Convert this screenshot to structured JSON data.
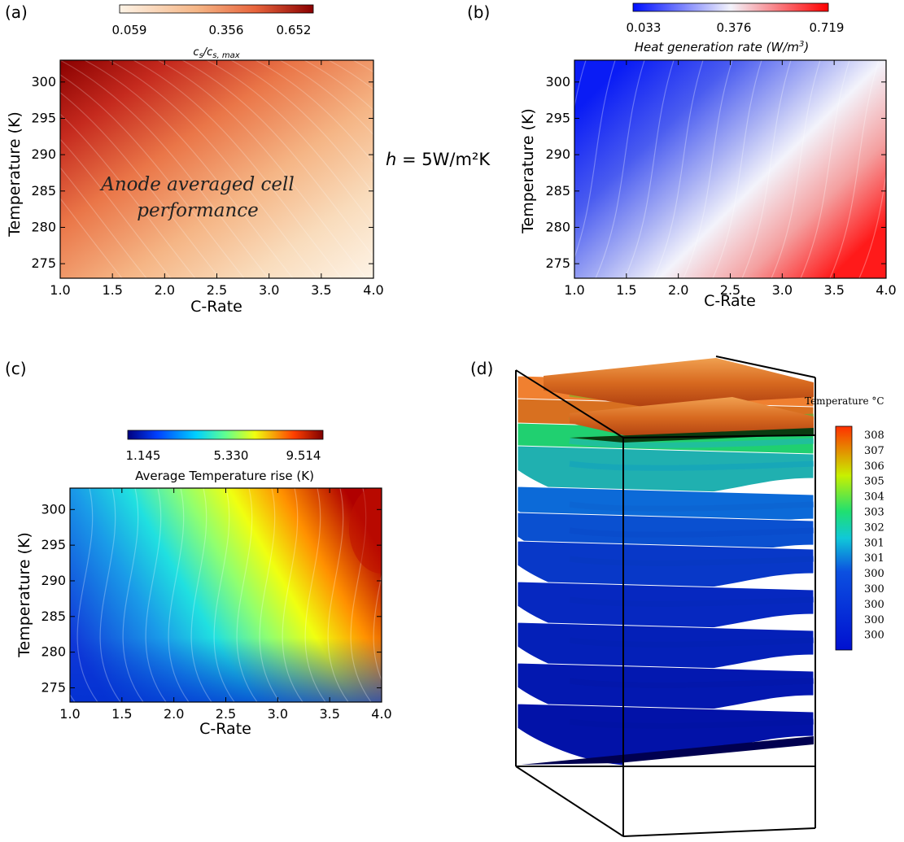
{
  "figure_note": "h = 5W/m²K",
  "colors": {
    "anode": [
      "#fdf3e6",
      "#f7c89a",
      "#ef8a56",
      "#d33f27",
      "#8a0000"
    ],
    "heat": [
      "#0010ff",
      "#6f7cf2",
      "#f3f3fb",
      "#f28b8b",
      "#ff0000"
    ],
    "temp": [
      "#00007f",
      "#0040ff",
      "#00d0ff",
      "#60ff90",
      "#f0ff10",
      "#ff9000",
      "#b00000"
    ],
    "surface": [
      "#000060",
      "#0028d8",
      "#0c6ad8",
      "#20d0d0",
      "#28e070",
      "#c8e800",
      "#ff8000",
      "#e04000"
    ]
  },
  "chart_data": [
    {
      "id": "a",
      "panel_label": "(a)",
      "type": "heatmap",
      "xlabel": "C-Rate",
      "ylabel": "Temperature (K)",
      "xlim": [
        1.0,
        4.0
      ],
      "ylim": [
        273,
        303
      ],
      "xticks": [
        "1.0",
        "1.5",
        "2.0",
        "2.5",
        "3.0",
        "3.5",
        "4.0"
      ],
      "yticks": [
        "275",
        "280",
        "285",
        "290",
        "295",
        "300"
      ],
      "colorbar": {
        "ticks": [
          "0.059",
          "0.356",
          "0.652"
        ],
        "label_main": "c",
        "label_main_sub": "s",
        "label_sep": "/c",
        "label_sub": "s, max"
      },
      "annotation": [
        "Anode averaged cell",
        "performance"
      ],
      "corner_values": {
        "low_c_high_T": 0.652,
        "high_c_low_T": 0.059
      }
    },
    {
      "id": "b",
      "panel_label": "(b)",
      "type": "heatmap",
      "xlabel": "C-Rate",
      "ylabel": "Temperature (K)",
      "xlim": [
        1.0,
        4.0
      ],
      "ylim": [
        273,
        303
      ],
      "xticks": [
        "1.0",
        "1.5",
        "2.0",
        "2.5",
        "3.0",
        "3.5",
        "4.0"
      ],
      "yticks": [
        "275",
        "280",
        "285",
        "290",
        "295",
        "300"
      ],
      "colorbar": {
        "ticks": [
          "0.033",
          "0.376",
          "0.719"
        ],
        "label_main": "Heat generation rate (W/m",
        "label_sup": "3",
        "label_end": ")"
      },
      "corner_values": {
        "low_c_high_T": 0.033,
        "high_c_low_T": 0.719
      }
    },
    {
      "id": "c",
      "panel_label": "(c)",
      "type": "heatmap",
      "xlabel": "C-Rate",
      "ylabel": "Temperature (K)",
      "xlim": [
        1.0,
        4.0
      ],
      "ylim": [
        273,
        303
      ],
      "xticks": [
        "1.0",
        "1.5",
        "2.0",
        "2.5",
        "3.0",
        "3.5",
        "4.0"
      ],
      "yticks": [
        "275",
        "280",
        "285",
        "290",
        "295",
        "300"
      ],
      "colorbar": {
        "ticks": [
          "1.145",
          "5.330",
          "9.514"
        ],
        "label": "Average Temperature rise (K)"
      },
      "corner_values": {
        "low_c_low_T": 1.145,
        "high_c_high_T": 9.514
      }
    },
    {
      "id": "d",
      "panel_label": "(d)",
      "type": "surface-3d",
      "colorbar": {
        "title": "Temperature °C",
        "ticks": [
          "308",
          "307",
          "306",
          "305",
          "304",
          "303",
          "302",
          "301",
          "301",
          "300",
          "300",
          "300",
          "300",
          "300"
        ]
      }
    }
  ]
}
